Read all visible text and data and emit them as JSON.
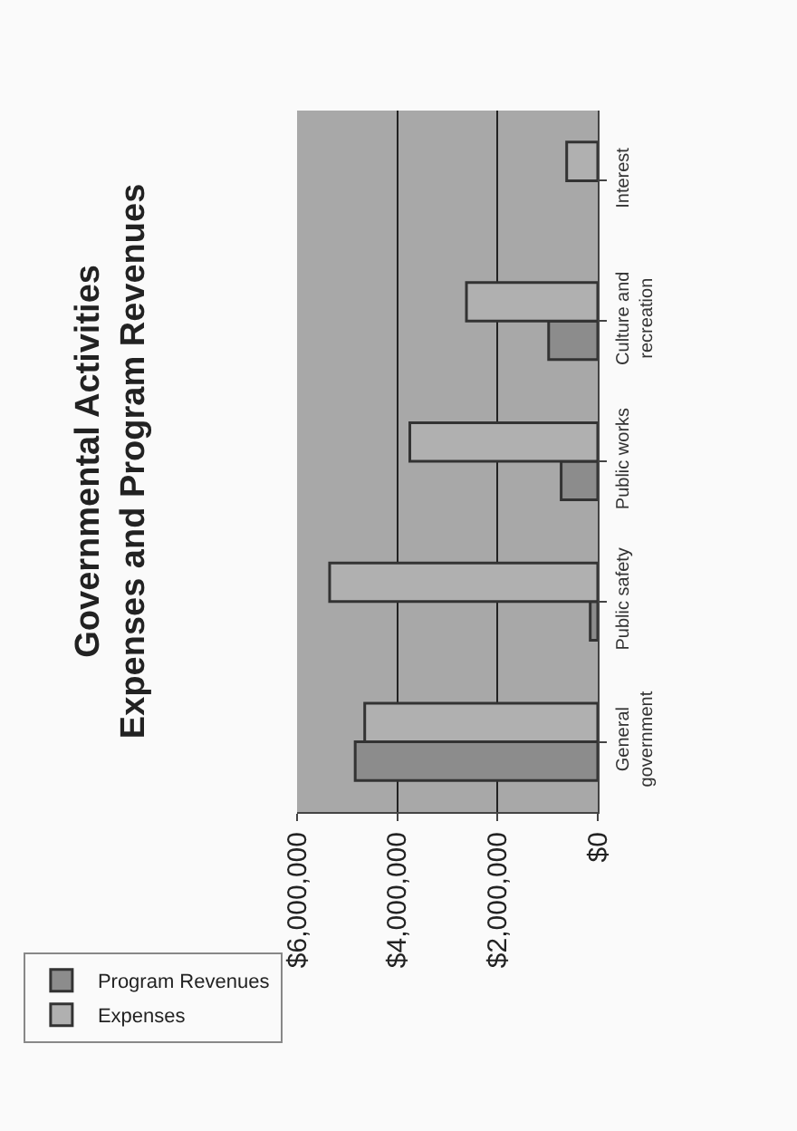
{
  "chart_data": {
    "type": "bar",
    "orientation": "horizontal",
    "title": "Governmental Activities\nExpenses and Program Revenues",
    "categories": [
      "Interest",
      "Culture and\nrecreation",
      "Public works",
      "Public safety",
      "General\ngovernment"
    ],
    "series": [
      {
        "name": "Program Revenues",
        "color": "#8c8c8c",
        "values": [
          null,
          980000,
          730000,
          150000,
          4840000
        ]
      },
      {
        "name": "Expenses",
        "color": "#b0b0b0",
        "values": [
          620000,
          2620000,
          3750000,
          5350000,
          4650000
        ]
      }
    ],
    "xlim": [
      6000000,
      0
    ],
    "xticks": [
      {
        "value": 0,
        "label": "$0"
      },
      {
        "value": 2000000,
        "label": "$2,000,000"
      },
      {
        "value": 4000000,
        "label": "$4,000,000"
      },
      {
        "value": 6000000,
        "label": "$6,000,000"
      }
    ],
    "grid": "x",
    "legend": "left"
  }
}
